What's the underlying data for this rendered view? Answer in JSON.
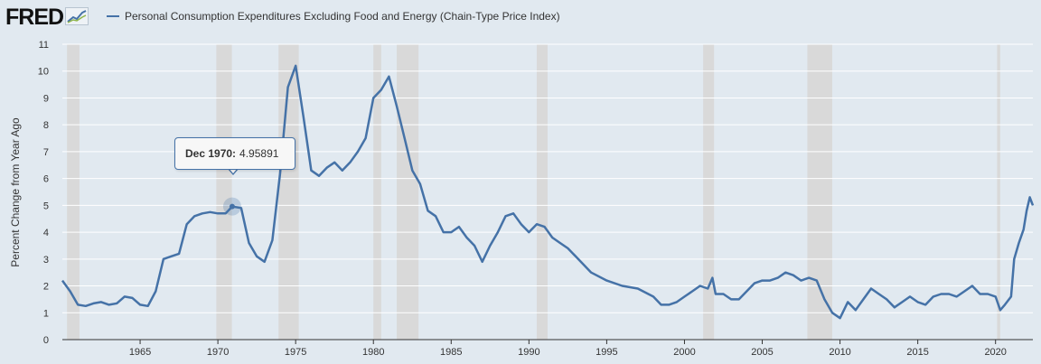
{
  "logo": {
    "text": "FRED"
  },
  "legend": {
    "label": "Personal Consumption Expenditures Excluding Food and Energy (Chain-Type Price Index)"
  },
  "tooltip": {
    "date": "Dec 1970:",
    "value": "4.95891"
  },
  "chart_data": {
    "type": "line",
    "title": "",
    "xlabel": "",
    "ylabel": "Percent Change from Year Ago",
    "xlim": [
      1960.0,
      2022.4
    ],
    "ylim": [
      0,
      11
    ],
    "yticks": [
      0,
      1,
      2,
      3,
      4,
      5,
      6,
      7,
      8,
      9,
      10,
      11
    ],
    "xticks": [
      1965,
      1970,
      1975,
      1980,
      1985,
      1990,
      1995,
      2000,
      2005,
      2010,
      2015,
      2020
    ],
    "grid": true,
    "legend_position": "top",
    "line_color": "#4572a7",
    "recession_color": "#d9d9d9",
    "recessions": [
      [
        1960.3,
        1961.1
      ],
      [
        1969.9,
        1970.9
      ],
      [
        1973.9,
        1975.2
      ],
      [
        1980.0,
        1980.5
      ],
      [
        1981.5,
        1982.9
      ],
      [
        1990.5,
        1991.2
      ],
      [
        2001.2,
        2001.9
      ],
      [
        2007.9,
        2009.5
      ],
      [
        2020.1,
        2020.3
      ]
    ],
    "highlight_point": {
      "x": 1970.92,
      "y": 4.95891
    },
    "series": [
      {
        "name": "Personal Consumption Expenditures Excluding Food and Energy (Chain-Type Price Index)",
        "x": [
          1960.0,
          1960.5,
          1961.0,
          1961.5,
          1962.0,
          1962.5,
          1963.0,
          1963.5,
          1964.0,
          1964.5,
          1965.0,
          1965.5,
          1966.0,
          1966.5,
          1967.0,
          1967.5,
          1968.0,
          1968.5,
          1969.0,
          1969.5,
          1970.0,
          1970.5,
          1970.92,
          1971.5,
          1972.0,
          1972.5,
          1973.0,
          1973.5,
          1974.0,
          1974.5,
          1975.0,
          1975.5,
          1976.0,
          1976.5,
          1977.0,
          1977.5,
          1978.0,
          1978.5,
          1979.0,
          1979.5,
          1980.0,
          1980.5,
          1981.0,
          1981.5,
          1982.0,
          1982.5,
          1983.0,
          1983.5,
          1984.0,
          1984.5,
          1985.0,
          1985.5,
          1986.0,
          1986.5,
          1987.0,
          1987.5,
          1988.0,
          1988.5,
          1989.0,
          1989.5,
          1990.0,
          1990.5,
          1991.0,
          1991.5,
          1992.0,
          1992.5,
          1993.0,
          1993.5,
          1994.0,
          1995.0,
          1996.0,
          1997.0,
          1998.0,
          1998.5,
          1999.0,
          1999.5,
          2000.0,
          2000.5,
          2001.0,
          2001.5,
          2001.8,
          2002.0,
          2002.5,
          2003.0,
          2003.5,
          2004.0,
          2004.5,
          2005.0,
          2005.5,
          2006.0,
          2006.5,
          2007.0,
          2007.5,
          2008.0,
          2008.5,
          2009.0,
          2009.5,
          2010.0,
          2010.5,
          2011.0,
          2011.5,
          2012.0,
          2012.5,
          2013.0,
          2013.5,
          2014.0,
          2014.5,
          2015.0,
          2015.5,
          2016.0,
          2016.5,
          2017.0,
          2017.5,
          2018.0,
          2018.5,
          2019.0,
          2019.5,
          2020.0,
          2020.3,
          2020.6,
          2021.0,
          2021.2,
          2021.5,
          2021.8,
          2022.0,
          2022.2,
          2022.4
        ],
        "values": [
          2.2,
          1.8,
          1.3,
          1.25,
          1.35,
          1.4,
          1.3,
          1.35,
          1.6,
          1.55,
          1.3,
          1.25,
          1.8,
          3.0,
          3.1,
          3.2,
          4.3,
          4.6,
          4.7,
          4.75,
          4.7,
          4.7,
          4.96,
          4.9,
          3.6,
          3.1,
          2.9,
          3.7,
          6.2,
          9.4,
          10.2,
          8.3,
          6.3,
          6.1,
          6.4,
          6.6,
          6.3,
          6.6,
          7.0,
          7.5,
          9.0,
          9.3,
          9.8,
          8.7,
          7.5,
          6.3,
          5.8,
          4.8,
          4.6,
          4.0,
          4.0,
          4.2,
          3.8,
          3.5,
          2.9,
          3.5,
          4.0,
          4.6,
          4.7,
          4.3,
          4.0,
          4.3,
          4.2,
          3.8,
          3.6,
          3.4,
          3.1,
          2.8,
          2.5,
          2.2,
          2.0,
          1.9,
          1.6,
          1.3,
          1.3,
          1.4,
          1.6,
          1.8,
          2.0,
          1.9,
          2.3,
          1.7,
          1.7,
          1.5,
          1.5,
          1.8,
          2.1,
          2.2,
          2.2,
          2.3,
          2.5,
          2.4,
          2.2,
          2.3,
          2.2,
          1.5,
          1.0,
          0.8,
          1.4,
          1.1,
          1.5,
          1.9,
          1.7,
          1.5,
          1.2,
          1.4,
          1.6,
          1.4,
          1.3,
          1.6,
          1.7,
          1.7,
          1.6,
          1.8,
          2.0,
          1.7,
          1.7,
          1.6,
          1.1,
          1.3,
          1.6,
          3.0,
          3.6,
          4.1,
          4.8,
          5.3,
          5.0
        ]
      }
    ]
  }
}
